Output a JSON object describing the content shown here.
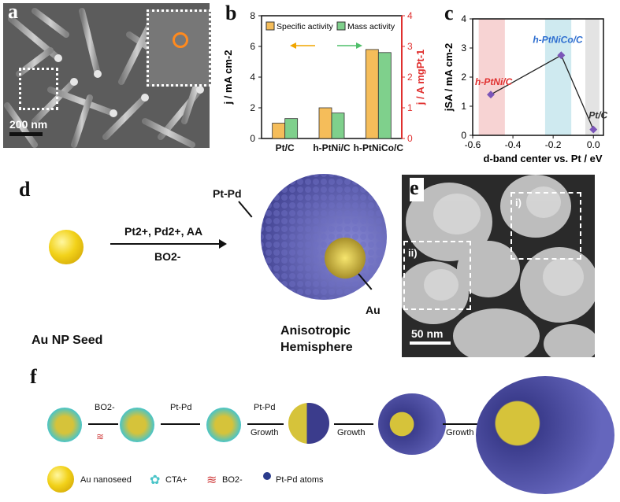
{
  "panels": {
    "a": {
      "letter": "a",
      "scale_bar": "200 nm"
    },
    "b": {
      "letter": "b"
    },
    "c": {
      "letter": "c"
    },
    "d": {
      "letter": "d",
      "seed_label": "Au NP Seed",
      "reagents_top": "Pt2+, Pd2+, AA",
      "reagents_bottom": "BO2-",
      "ptpd_label": "Pt-Pd",
      "au_label": "Au",
      "product_label_line1": "Anisotropic",
      "product_label_line2": "Hemisphere"
    },
    "e": {
      "letter": "e",
      "box1": "i)",
      "box2": "ii)",
      "scale_bar": "50 nm"
    },
    "f": {
      "letter": "f",
      "step1": "BO2-",
      "step2": "Pt-Pd",
      "step3_top": "Pt-Pd",
      "step3_bottom": "Growth",
      "step4": "Growth",
      "step5": "Growth",
      "legend": [
        "Au nanoseed",
        "CTA+",
        "BO2-",
        "Pt-Pd atoms"
      ]
    }
  },
  "chart_data": [
    {
      "type": "bar",
      "categories": [
        "Pt/C",
        "h-PtNi/C",
        "h-PtNiCo/C"
      ],
      "series": [
        {
          "name": "Specific activity",
          "values": [
            1.0,
            2.0,
            5.8
          ],
          "color": "#f5bd5a",
          "axis": "left"
        },
        {
          "name": "Mass activity",
          "values": [
            0.65,
            0.83,
            2.8
          ],
          "color": "#7fd08c",
          "axis": "right"
        }
      ],
      "ylabel_left": "j / mA cm-2",
      "ylabel_right": "j / A mgPt-1",
      "ylim_left": [
        0,
        8
      ],
      "ylim_right": [
        0,
        4
      ],
      "yticks_left": [
        0,
        2,
        4,
        6,
        8
      ],
      "yticks_right": [
        0,
        1,
        2,
        3,
        4
      ],
      "legend_placement": "top"
    },
    {
      "type": "scatter",
      "points": [
        {
          "label": "h-PtNi/C",
          "x": -0.51,
          "y": 1.4,
          "label_color": "#e0302f"
        },
        {
          "label": "h-PtNiCo/C",
          "x": -0.16,
          "y": 2.75,
          "label_color": "#2f6fd0"
        },
        {
          "label": "Pt/C",
          "x": 0.0,
          "y": 0.2,
          "label_color": "#333333"
        }
      ],
      "xlabel": "d-band center vs. Pt / eV",
      "ylabel": "jSA / mA cm-2",
      "xlim": [
        -0.6,
        0.05
      ],
      "ylim": [
        0,
        4
      ],
      "xticks": [
        -0.6,
        -0.4,
        -0.2,
        0.0
      ],
      "yticks": [
        0,
        1,
        2,
        3,
        4
      ],
      "bands": [
        {
          "from": -0.57,
          "to": -0.44,
          "color": "#f7d3d3"
        },
        {
          "from": -0.24,
          "to": -0.11,
          "color": "#cfeaf0"
        },
        {
          "from": -0.04,
          "to": 0.03,
          "color": "#e3e3e3"
        }
      ]
    }
  ]
}
